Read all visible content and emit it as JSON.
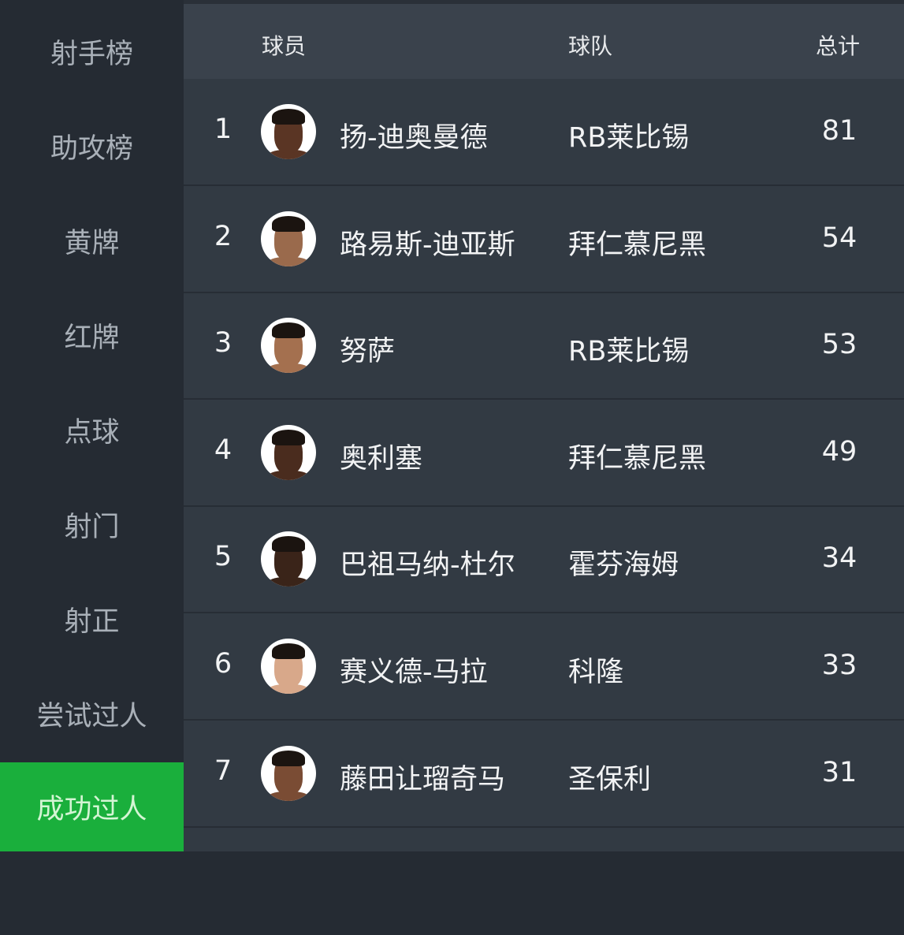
{
  "sidebar": {
    "items": [
      {
        "label": "射手榜",
        "active": false
      },
      {
        "label": "助攻榜",
        "active": false
      },
      {
        "label": "黄牌",
        "active": false
      },
      {
        "label": "红牌",
        "active": false
      },
      {
        "label": "点球",
        "active": false
      },
      {
        "label": "射门",
        "active": false
      },
      {
        "label": "射正",
        "active": false
      },
      {
        "label": "尝试过人",
        "active": false
      },
      {
        "label": "成功过人",
        "active": true
      }
    ],
    "active_color": "#1aaf3c"
  },
  "table": {
    "headers": {
      "player": "球员",
      "team": "球队",
      "total": "总计"
    },
    "rows": [
      {
        "rank": "1",
        "player": "扬-迪奥曼德",
        "team": "RB莱比锡",
        "total": "81",
        "skin": "#5a3524"
      },
      {
        "rank": "2",
        "player": "路易斯-迪亚斯",
        "team": "拜仁慕尼黑",
        "total": "54",
        "skin": "#9a6a4c"
      },
      {
        "rank": "3",
        "player": "努萨",
        "team": "RB莱比锡",
        "total": "53",
        "skin": "#a4704f"
      },
      {
        "rank": "4",
        "player": "奥利塞",
        "team": "拜仁慕尼黑",
        "total": "49",
        "skin": "#4a2c1e"
      },
      {
        "rank": "5",
        "player": "巴祖马纳-杜尔",
        "team": "霍芬海姆",
        "total": "34",
        "skin": "#3a2419"
      },
      {
        "rank": "6",
        "player": "赛义德-马拉",
        "team": "科隆",
        "total": "33",
        "skin": "#d8a88a"
      },
      {
        "rank": "7",
        "player": "藤田让瑠奇马",
        "team": "圣保利",
        "total": "31",
        "skin": "#7a4c34"
      }
    ]
  }
}
